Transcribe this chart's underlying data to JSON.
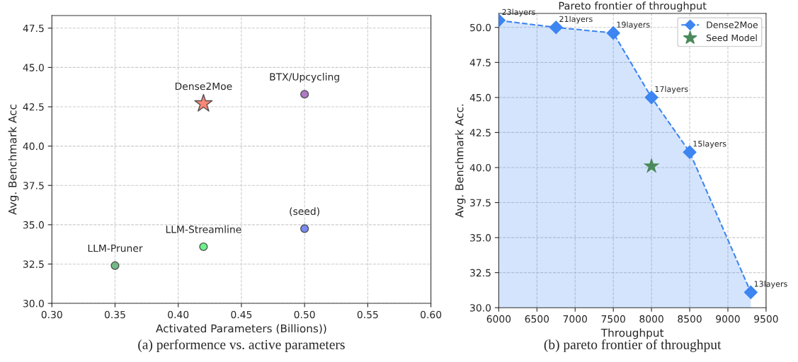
{
  "chart_data": [
    {
      "type": "scatter",
      "xlabel": "Activated Parameters (Billions))",
      "ylabel": "Avg. Benchmark Acc",
      "xlim": [
        0.3,
        0.6
      ],
      "ylim": [
        30,
        48.3
      ],
      "xticks": [
        {
          "value": 0.3,
          "label": "0.30"
        },
        {
          "value": 0.35,
          "label": "0.35"
        },
        {
          "value": 0.4,
          "label": "0.40"
        },
        {
          "value": 0.45,
          "label": "0.45"
        },
        {
          "value": 0.5,
          "label": "0.50"
        },
        {
          "value": 0.55,
          "label": "0.55"
        },
        {
          "value": 0.6,
          "label": "0.60"
        }
      ],
      "yticks": [
        {
          "value": 30,
          "label": "30.0"
        },
        {
          "value": 32.5,
          "label": "32.5"
        },
        {
          "value": 35,
          "label": "35.0"
        },
        {
          "value": 37.5,
          "label": "37.5"
        },
        {
          "value": 40,
          "label": "40.0"
        },
        {
          "value": 42.5,
          "label": "42.5"
        },
        {
          "value": 45,
          "label": "45.0"
        },
        {
          "value": 47.5,
          "label": "47.5"
        }
      ],
      "grid": true,
      "legend": false,
      "series": [
        {
          "marker": "circle",
          "x": [
            0.35,
            0.42,
            0.5,
            0.5
          ],
          "values": [
            32.4,
            33.6,
            34.75,
            43.3
          ],
          "colors": [
            "#66b27a",
            "#5ef07e",
            "#6b7ff0",
            "#a86bc0"
          ]
        },
        {
          "marker": "star",
          "x": [
            0.42
          ],
          "values": [
            42.7
          ],
          "color": "#f87a68"
        }
      ],
      "annotations": [
        {
          "text": "LLM-Pruner",
          "x": 0.35,
          "y": 32.4
        },
        {
          "text": "LLM-Streamline",
          "x": 0.42,
          "y": 33.6
        },
        {
          "text": "(seed)",
          "x": 0.5,
          "y": 34.75
        },
        {
          "text": "BTX/Upcycling",
          "x": 0.5,
          "y": 43.3
        },
        {
          "text": "Dense2Moe",
          "x": 0.42,
          "y": 42.7
        },
        "(a) performence vs. active parameters"
      ]
    },
    {
      "type": "area",
      "title": "Pareto frontier of throughput",
      "xlabel": "Throughput",
      "ylabel": "Avg. Benchmark Acc.",
      "xlim": [
        6000,
        9500
      ],
      "ylim": [
        30,
        51
      ],
      "xticks": [
        6000,
        6500,
        7000,
        7500,
        8000,
        8500,
        9000,
        9500
      ],
      "yticks": [
        {
          "value": 30,
          "label": "30.0"
        },
        {
          "value": 32.5,
          "label": "32.5"
        },
        {
          "value": 35,
          "label": "35.0"
        },
        {
          "value": 37.5,
          "label": "37.5"
        },
        {
          "value": 40,
          "label": "40.0"
        },
        {
          "value": 42.5,
          "label": "42.5"
        },
        {
          "value": 45,
          "label": "45.0"
        },
        {
          "value": 47.5,
          "label": "47.5"
        },
        {
          "value": 50,
          "label": "50.0"
        }
      ],
      "grid": true,
      "legend": "top right",
      "series": [
        {
          "name": "Dense2Moe",
          "marker": "diamond",
          "line_style": "dashed",
          "color": "#3d85f0",
          "x": [
            6000,
            6750,
            7500,
            8000,
            8500,
            9300
          ],
          "values": [
            50.5,
            50.0,
            49.6,
            45.0,
            41.1,
            31.1
          ]
        },
        {
          "type": "scatter",
          "name": "Seed Model",
          "marker": "star",
          "color": "#4a8a5a",
          "x": [
            8000
          ],
          "values": [
            40.1
          ]
        }
      ],
      "annotations": [
        {
          "text": "23layers",
          "x": 6000,
          "y": 50.5
        },
        {
          "text": "21layers",
          "x": 6750,
          "y": 50.0
        },
        {
          "text": "19layers",
          "x": 7500,
          "y": 49.6
        },
        {
          "text": "17layers",
          "x": 8000,
          "y": 45.0
        },
        {
          "text": "15layers",
          "x": 8500,
          "y": 41.1
        },
        {
          "text": "13layers",
          "x": 9300,
          "y": 31.1
        },
        "(b) pareto frontier of throughput"
      ]
    }
  ]
}
